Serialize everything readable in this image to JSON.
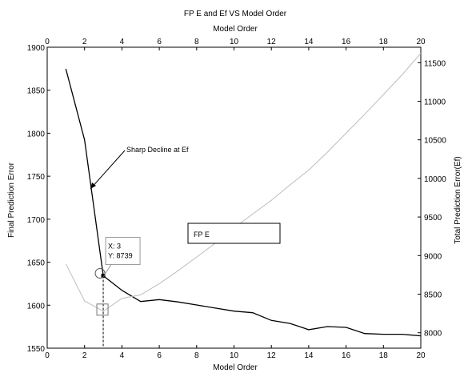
{
  "chart_data": {
    "type": "line",
    "title": "FP E and Ef VS Model Order",
    "top_xlabel": "Model Order",
    "xlabel": "Model Order",
    "ylabel_left": "Final Prediction Error",
    "ylabel_right": "Total Prediction Error(Ef)",
    "xlim": [
      0,
      20
    ],
    "ylim_left": [
      1550,
      1900
    ],
    "ylim_right": [
      7800,
      11700
    ],
    "xticks": [
      0,
      2,
      4,
      6,
      8,
      10,
      12,
      14,
      16,
      18,
      20
    ],
    "yticks_left": [
      1550,
      1600,
      1650,
      1700,
      1750,
      1800,
      1850,
      1900
    ],
    "yticks_right": [
      8000,
      8500,
      9000,
      9500,
      10000,
      10500,
      11000,
      11500
    ],
    "grid": false,
    "series": [
      {
        "axis": "right",
        "color": "#000000",
        "x": [
          1,
          2,
          3,
          4,
          5,
          6,
          7,
          8,
          9,
          10,
          11,
          12,
          13,
          14,
          15,
          16,
          17,
          18,
          19,
          20
        ],
        "values": [
          11420,
          10500,
          8739,
          8550,
          8405,
          8430,
          8400,
          8360,
          8320,
          8280,
          8260,
          8160,
          8120,
          8040,
          8080,
          8070,
          7990,
          7980,
          7980,
          7960
        ]
      },
      {
        "axis": "left",
        "color": "#bdbdbd",
        "x": [
          1,
          2,
          3,
          4,
          5,
          6,
          7,
          8,
          9,
          10,
          11,
          12,
          13,
          14,
          15,
          16,
          17,
          18,
          19,
          20
        ],
        "values": [
          1648,
          1605,
          1593,
          1608,
          1612,
          1625,
          1640,
          1656,
          1672,
          1690,
          1706,
          1722,
          1740,
          1757,
          1778,
          1800,
          1822,
          1845,
          1868,
          1893
        ]
      }
    ],
    "annotations": {
      "arrow_text": "Sharp Decline at Ef",
      "legend_label": "FP E",
      "datatip_x": "X: 3",
      "datatip_y": "Y: 8739",
      "datatip_point": {
        "x": 3,
        "y": 8739
      }
    }
  }
}
